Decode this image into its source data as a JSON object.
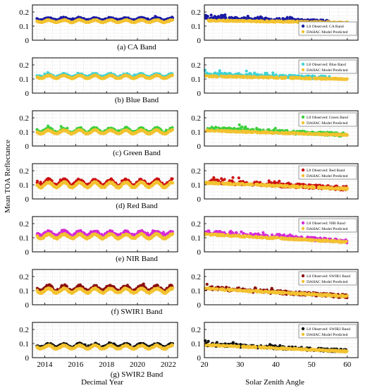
{
  "figure": {
    "ylabel": "Mean TOA Reflectance",
    "left_xlabel": "Decimal Year",
    "right_xlabel": "Solar Zenith Angle",
    "colors": {
      "model": "#f2c230",
      "grid": "#c8c8c8",
      "frame": "#000000"
    }
  },
  "chart_data": [
    {
      "type": "scatter",
      "panel": "time-series",
      "caption": "(a) CA Band",
      "xlim": [
        2013.2,
        2022.6
      ],
      "ylim": [
        0,
        0.25
      ],
      "yticks": [
        0,
        0.1,
        0.2
      ],
      "yticklabels": [
        "0",
        "0.1",
        "0.2"
      ],
      "xticks": [
        2014,
        2016,
        2018,
        2020,
        2022
      ],
      "xticklabels": [],
      "grid": true,
      "series": [
        {
          "role": "observed",
          "color": "#1a1aa6",
          "mean": 0.15,
          "amplitude": 0.008,
          "jitter": 0.005,
          "trend": 0
        },
        {
          "role": "model",
          "color": "#f2c230",
          "mean": 0.135,
          "amplitude": 0.008,
          "jitter": 0.003,
          "trend": 0
        }
      ]
    },
    {
      "type": "scatter",
      "panel": "solar-zenith",
      "xlim": [
        20,
        63
      ],
      "ylim": [
        0,
        0.25
      ],
      "yticks": [
        0,
        0.1,
        0.2
      ],
      "yticklabels": [
        "0",
        "0.1",
        "0.2"
      ],
      "xticks": [
        20,
        30,
        40,
        50,
        60
      ],
      "xticklabels": [],
      "grid": true,
      "legend_position": "right",
      "legend": [
        "L8 Observed: CA Band",
        "DAHAC Model Predicted"
      ],
      "series": [
        {
          "role": "observed",
          "color": "#1a1aa6",
          "y_at_20": 0.16,
          "y_at_60": 0.13,
          "spread": 0.008,
          "x_max": 55
        },
        {
          "role": "model",
          "color": "#f2c230",
          "y_at_20": 0.14,
          "y_at_60": 0.125,
          "spread": 0.004,
          "x_max": 60
        }
      ]
    },
    {
      "type": "scatter",
      "panel": "time-series",
      "caption": "(b) Blue  Band",
      "xlim": [
        2013.2,
        2022.6
      ],
      "ylim": [
        0,
        0.25
      ],
      "yticks": [
        0,
        0.1,
        0.2
      ],
      "yticklabels": [
        "0",
        "0.1",
        "0.2"
      ],
      "xticks": [
        2014,
        2016,
        2018,
        2020,
        2022
      ],
      "xticklabels": [],
      "grid": true,
      "series": [
        {
          "role": "observed",
          "color": "#3fd3d3",
          "mean": 0.125,
          "amplitude": 0.01,
          "jitter": 0.006,
          "trend": 0
        },
        {
          "role": "model",
          "color": "#f2c230",
          "mean": 0.115,
          "amplitude": 0.01,
          "jitter": 0.003,
          "trend": 0
        }
      ]
    },
    {
      "type": "scatter",
      "panel": "solar-zenith",
      "xlim": [
        20,
        63
      ],
      "ylim": [
        0,
        0.25
      ],
      "yticks": [
        0,
        0.1,
        0.2
      ],
      "yticklabels": [
        "0",
        "0.1",
        "0.2"
      ],
      "xticks": [
        20,
        30,
        40,
        50,
        60
      ],
      "xticklabels": [],
      "grid": true,
      "legend_position": "top-right",
      "legend": [
        "L8 Observed: Blue Band",
        "DAHAC Model Predicted"
      ],
      "series": [
        {
          "role": "observed",
          "color": "#3fd3d3",
          "y_at_20": 0.135,
          "y_at_60": 0.105,
          "spread": 0.01,
          "x_max": 55
        },
        {
          "role": "model",
          "color": "#f2c230",
          "y_at_20": 0.12,
          "y_at_60": 0.1,
          "spread": 0.004,
          "x_max": 60
        }
      ]
    },
    {
      "type": "scatter",
      "panel": "time-series",
      "caption": "(c) Green Band",
      "xlim": [
        2013.2,
        2022.6
      ],
      "ylim": [
        0,
        0.25
      ],
      "yticks": [
        0,
        0.1,
        0.2
      ],
      "yticklabels": [
        "0",
        "0.1",
        "0.2"
      ],
      "xticks": [
        2014,
        2016,
        2018,
        2020,
        2022
      ],
      "xticklabels": [],
      "grid": true,
      "series": [
        {
          "role": "observed",
          "color": "#3ccf3c",
          "mean": 0.11,
          "amplitude": 0.015,
          "jitter": 0.008,
          "trend": 0
        },
        {
          "role": "model",
          "color": "#f2c230",
          "mean": 0.1,
          "amplitude": 0.012,
          "jitter": 0.004,
          "trend": 0
        }
      ]
    },
    {
      "type": "scatter",
      "panel": "solar-zenith",
      "xlim": [
        20,
        63
      ],
      "ylim": [
        0,
        0.25
      ],
      "yticks": [
        0,
        0.1,
        0.2
      ],
      "yticklabels": [
        "0",
        "0.1",
        "0.2"
      ],
      "xticks": [
        20,
        30,
        40,
        50,
        60
      ],
      "xticklabels": [],
      "grid": true,
      "legend_position": "top-right",
      "legend": [
        "L8 Observed: Green Band",
        "DAHAC Model Predicted"
      ],
      "series": [
        {
          "role": "observed",
          "color": "#3ccf3c",
          "y_at_20": 0.125,
          "y_at_60": 0.08,
          "spread": 0.012,
          "x_max": 60
        },
        {
          "role": "model",
          "color": "#f2c230",
          "y_at_20": 0.11,
          "y_at_60": 0.078,
          "spread": 0.004,
          "x_max": 60
        }
      ]
    },
    {
      "type": "scatter",
      "panel": "time-series",
      "caption": "(d) Red  Band",
      "xlim": [
        2013.2,
        2022.6
      ],
      "ylim": [
        0,
        0.25
      ],
      "yticks": [
        0,
        0.1,
        0.2
      ],
      "yticklabels": [
        "0",
        "0.1",
        "0.2"
      ],
      "xticks": [
        2014,
        2016,
        2018,
        2020,
        2022
      ],
      "xticklabels": [],
      "grid": true,
      "series": [
        {
          "role": "observed",
          "color": "#cc1111",
          "mean": 0.115,
          "amplitude": 0.02,
          "jitter": 0.01,
          "trend": 0
        },
        {
          "role": "model",
          "color": "#f2c230",
          "mean": 0.1,
          "amplitude": 0.018,
          "jitter": 0.005,
          "trend": 0
        }
      ]
    },
    {
      "type": "scatter",
      "panel": "solar-zenith",
      "xlim": [
        20,
        63
      ],
      "ylim": [
        0,
        0.25
      ],
      "yticks": [
        0,
        0.1,
        0.2
      ],
      "yticklabels": [
        "0",
        "0.1",
        "0.2"
      ],
      "xticks": [
        20,
        30,
        40,
        50,
        60
      ],
      "xticklabels": [],
      "grid": true,
      "legend_position": "top-right",
      "legend": [
        "L8 Observed: Red Band",
        "DAHAC Model Predicted"
      ],
      "series": [
        {
          "role": "observed",
          "color": "#cc1111",
          "y_at_20": 0.125,
          "y_at_60": 0.075,
          "spread": 0.014,
          "x_max": 60
        },
        {
          "role": "model",
          "color": "#f2c230",
          "y_at_20": 0.115,
          "y_at_60": 0.072,
          "spread": 0.005,
          "x_max": 60
        }
      ]
    },
    {
      "type": "scatter",
      "panel": "time-series",
      "caption": "(e) NIR  Band",
      "xlim": [
        2013.2,
        2022.6
      ],
      "ylim": [
        0,
        0.25
      ],
      "yticks": [
        0,
        0.1,
        0.2
      ],
      "yticklabels": [
        "0",
        "0.1",
        "0.2"
      ],
      "xticks": [
        2014,
        2016,
        2018,
        2020,
        2022
      ],
      "xticklabels": [],
      "grid": true,
      "series": [
        {
          "role": "observed",
          "color": "#d62ad6",
          "mean": 0.13,
          "amplitude": 0.015,
          "jitter": 0.008,
          "trend": 0
        },
        {
          "role": "model",
          "color": "#f2c230",
          "mean": 0.11,
          "amplitude": 0.015,
          "jitter": 0.005,
          "trend": 0
        }
      ]
    },
    {
      "type": "scatter",
      "panel": "solar-zenith",
      "xlim": [
        20,
        63
      ],
      "ylim": [
        0,
        0.25
      ],
      "yticks": [
        0,
        0.1,
        0.2
      ],
      "yticklabels": [
        "0",
        "0.1",
        "0.2"
      ],
      "xticks": [
        20,
        30,
        40,
        50,
        60
      ],
      "xticklabels": [],
      "grid": true,
      "legend_position": "top-right",
      "legend": [
        "L8 Observed: NIR Band",
        "DAHAC Model Predicted"
      ],
      "series": [
        {
          "role": "observed",
          "color": "#d62ad6",
          "y_at_20": 0.14,
          "y_at_60": 0.075,
          "spread": 0.012,
          "x_max": 60
        },
        {
          "role": "model",
          "color": "#f2c230",
          "y_at_20": 0.125,
          "y_at_60": 0.07,
          "spread": 0.005,
          "x_max": 60
        }
      ]
    },
    {
      "type": "scatter",
      "panel": "time-series",
      "caption": "(f) SWIR1  Band",
      "xlim": [
        2013.2,
        2022.6
      ],
      "ylim": [
        0,
        0.25
      ],
      "yticks": [
        0,
        0.1,
        0.2
      ],
      "yticklabels": [
        "0",
        "0.1",
        "0.2"
      ],
      "xticks": [
        2014,
        2016,
        2018,
        2020,
        2022
      ],
      "xticklabels": [],
      "grid": true,
      "series": [
        {
          "role": "observed",
          "color": "#8b0e0e",
          "mean": 0.115,
          "amplitude": 0.018,
          "jitter": 0.01,
          "trend": 0
        },
        {
          "role": "model",
          "color": "#f2c230",
          "mean": 0.1,
          "amplitude": 0.015,
          "jitter": 0.005,
          "trend": 0
        }
      ]
    },
    {
      "type": "scatter",
      "panel": "solar-zenith",
      "xlim": [
        20,
        63
      ],
      "ylim": [
        0,
        0.25
      ],
      "yticks": [
        0,
        0.1,
        0.2
      ],
      "yticklabels": [
        "0",
        "0.1",
        "0.2"
      ],
      "xticks": [
        20,
        30,
        40,
        50,
        60
      ],
      "xticklabels": [],
      "grid": true,
      "legend_position": "top-right",
      "legend": [
        "L8 Observed: SWIR1 Band",
        "DAHAC Model Predicted"
      ],
      "series": [
        {
          "role": "observed",
          "color": "#8b0e0e",
          "y_at_20": 0.12,
          "y_at_60": 0.06,
          "spread": 0.012,
          "x_max": 60
        },
        {
          "role": "model",
          "color": "#f2c230",
          "y_at_20": 0.115,
          "y_at_60": 0.06,
          "spread": 0.005,
          "x_max": 60
        }
      ]
    },
    {
      "type": "scatter",
      "panel": "time-series",
      "caption": "(g) SWIR2  Band",
      "xlim": [
        2013.2,
        2022.6
      ],
      "ylim": [
        0,
        0.25
      ],
      "yticks": [
        0,
        0.1,
        0.2
      ],
      "yticklabels": [
        "0",
        "0.1",
        "0.2"
      ],
      "xticks": [
        2014,
        2016,
        2018,
        2020,
        2022
      ],
      "xticklabels": [
        "2014",
        "2016",
        "2018",
        "2020",
        "2022"
      ],
      "grid": true,
      "series": [
        {
          "role": "observed",
          "color": "#111111",
          "mean": 0.085,
          "amplitude": 0.012,
          "jitter": 0.007,
          "trend": 0
        },
        {
          "role": "model",
          "color": "#f2c230",
          "mean": 0.075,
          "amplitude": 0.012,
          "jitter": 0.004,
          "trend": 0
        }
      ]
    },
    {
      "type": "scatter",
      "panel": "solar-zenith",
      "xlim": [
        20,
        63
      ],
      "ylim": [
        0,
        0.25
      ],
      "yticks": [
        0,
        0.1,
        0.2
      ],
      "yticklabels": [
        "0",
        "0.1",
        "0.2"
      ],
      "xticks": [
        20,
        30,
        40,
        50,
        60
      ],
      "xticklabels": [
        "20",
        "30",
        "40",
        "50",
        "60"
      ],
      "grid": true,
      "legend_position": "top-right",
      "legend": [
        "L8 Observed: SWIR2 Band",
        "DAHAC Model Predicted"
      ],
      "series": [
        {
          "role": "observed",
          "color": "#111111",
          "y_at_20": 0.095,
          "y_at_60": 0.048,
          "spread": 0.01,
          "x_max": 60
        },
        {
          "role": "model",
          "color": "#f2c230",
          "y_at_20": 0.09,
          "y_at_60": 0.045,
          "spread": 0.004,
          "x_max": 60
        }
      ]
    }
  ]
}
